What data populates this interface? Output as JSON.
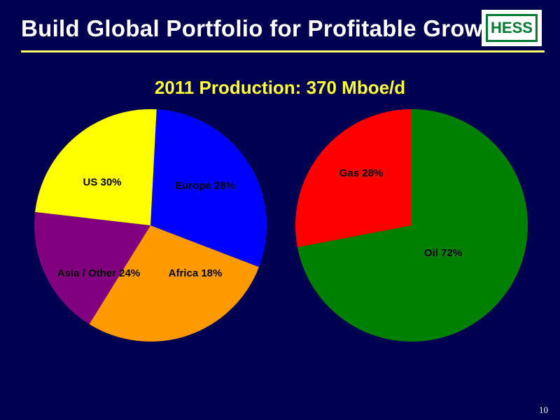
{
  "slide": {
    "title": "Build Global Portfolio for Profitable Growth",
    "page_number": "10",
    "background_color": "#000050",
    "rule_color": "#ffff66"
  },
  "logo": {
    "text": "HESS",
    "color": "#007a33"
  },
  "chart_title": "2011 Production: 370 Mboe/d",
  "chart_data": [
    {
      "type": "pie",
      "title": "",
      "slices": [
        {
          "label": "US 30%",
          "value": 30,
          "color": "#0000ff"
        },
        {
          "label": "Europe 28%",
          "value": 28,
          "color": "#ff9900"
        },
        {
          "label": "Africa 18%",
          "value": 18,
          "color": "#800080"
        },
        {
          "label": "Asia / Other 24%",
          "value": 24,
          "color": "#ffff00"
        }
      ]
    },
    {
      "type": "pie",
      "title": "",
      "slices": [
        {
          "label": "Oil 72%",
          "value": 72,
          "color": "#008000"
        },
        {
          "label": "Gas 28%",
          "value": 28,
          "color": "#ff0000"
        }
      ]
    }
  ]
}
